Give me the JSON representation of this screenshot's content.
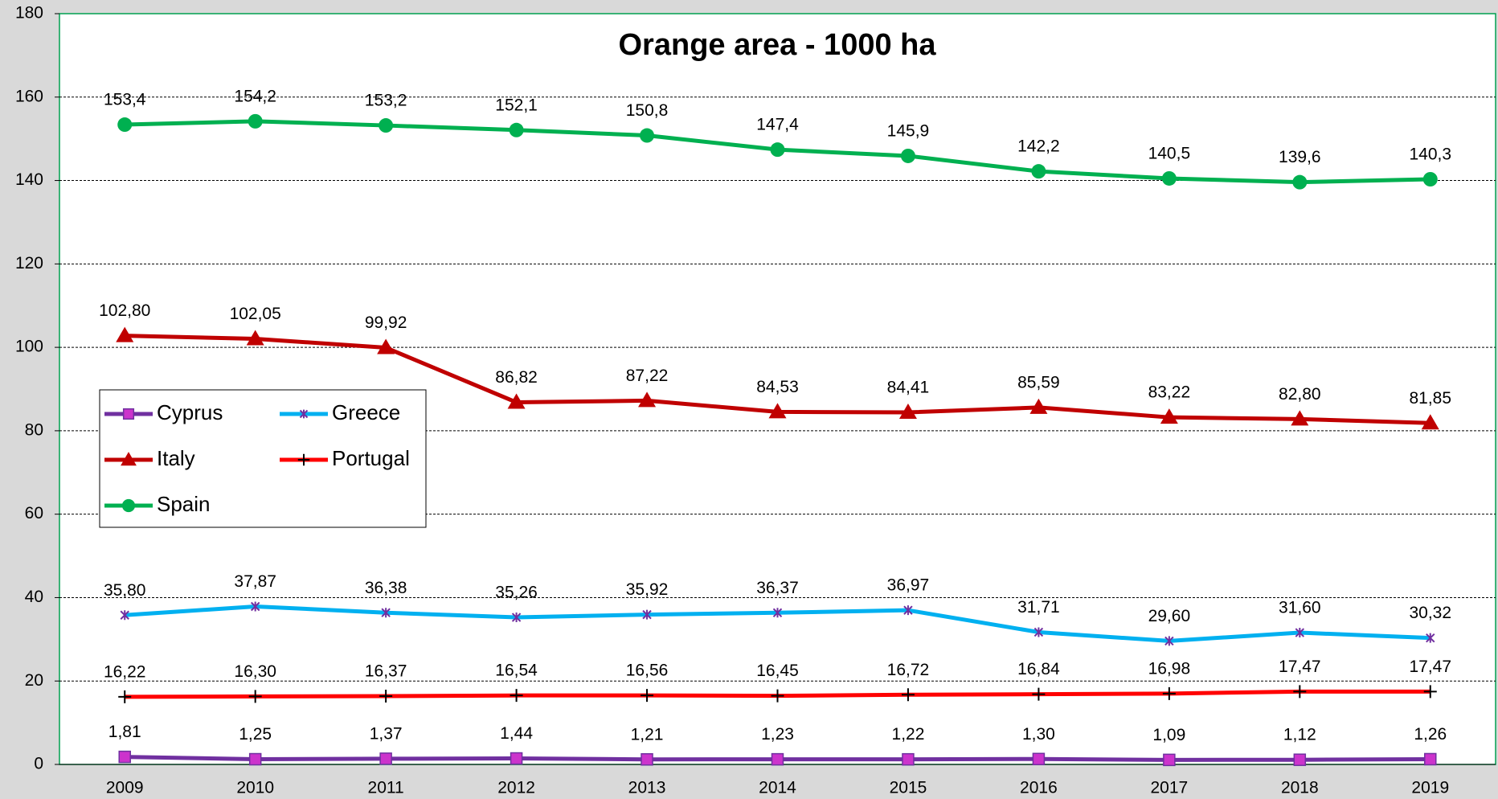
{
  "chart_data": {
    "type": "line",
    "title": "Orange area - 1000 ha",
    "categories": [
      "2009",
      "2010",
      "2011",
      "2012",
      "2013",
      "2014",
      "2015",
      "2016",
      "2017",
      "2018",
      "2019"
    ],
    "ylim": [
      0,
      180
    ],
    "yticks": [
      0,
      20,
      40,
      60,
      80,
      100,
      120,
      140,
      160,
      180
    ],
    "grid": true,
    "series": [
      {
        "name": "Cyprus",
        "color": "#7030a0",
        "marker": "square",
        "marker_color": "#cc33cc",
        "values": [
          1.81,
          1.25,
          1.37,
          1.44,
          1.21,
          1.23,
          1.22,
          1.3,
          1.09,
          1.12,
          1.26
        ],
        "value_labels": [
          "1,81",
          "1,25",
          "1,37",
          "1,44",
          "1,21",
          "1,23",
          "1,22",
          "1,30",
          "1,09",
          "1,12",
          "1,26"
        ]
      },
      {
        "name": "Greece",
        "color": "#00b0f0",
        "marker": "star",
        "marker_color": "#7030a0",
        "values": [
          35.8,
          37.87,
          36.38,
          35.26,
          35.92,
          36.37,
          36.97,
          31.71,
          29.6,
          31.6,
          30.32
        ],
        "value_labels": [
          "35,80",
          "37,87",
          "36,38",
          "35,26",
          "35,92",
          "36,37",
          "36,97",
          "31,71",
          "29,60",
          "31,60",
          "30,32"
        ]
      },
      {
        "name": "Italy",
        "color": "#c00000",
        "marker": "triangle",
        "marker_color": "#c00000",
        "values": [
          102.8,
          102.05,
          99.92,
          86.82,
          87.22,
          84.53,
          84.41,
          85.59,
          83.22,
          82.8,
          81.85
        ],
        "value_labels": [
          "102,80",
          "102,05",
          "99,92",
          "86,82",
          "87,22",
          "84,53",
          "84,41",
          "85,59",
          "83,22",
          "82,80",
          "81,85"
        ]
      },
      {
        "name": "Portugal",
        "color": "#ff0000",
        "marker": "plus",
        "marker_color": "#000000",
        "values": [
          16.22,
          16.3,
          16.37,
          16.54,
          16.56,
          16.45,
          16.72,
          16.84,
          16.98,
          17.47,
          17.47
        ],
        "value_labels": [
          "16,22",
          "16,30",
          "16,37",
          "16,54",
          "16,56",
          "16,45",
          "16,72",
          "16,84",
          "16,98",
          "17,47",
          "17,47"
        ]
      },
      {
        "name": "Spain",
        "color": "#00b050",
        "marker": "circle",
        "marker_color": "#00b050",
        "values": [
          153.4,
          154.2,
          153.2,
          152.1,
          150.8,
          147.4,
          145.9,
          142.2,
          140.5,
          139.6,
          140.3
        ],
        "value_labels": [
          "153,4",
          "154,2",
          "153,2",
          "152,1",
          "150,8",
          "147,4",
          "145,9",
          "142,2",
          "140,5",
          "139,6",
          "140,3"
        ]
      }
    ]
  }
}
